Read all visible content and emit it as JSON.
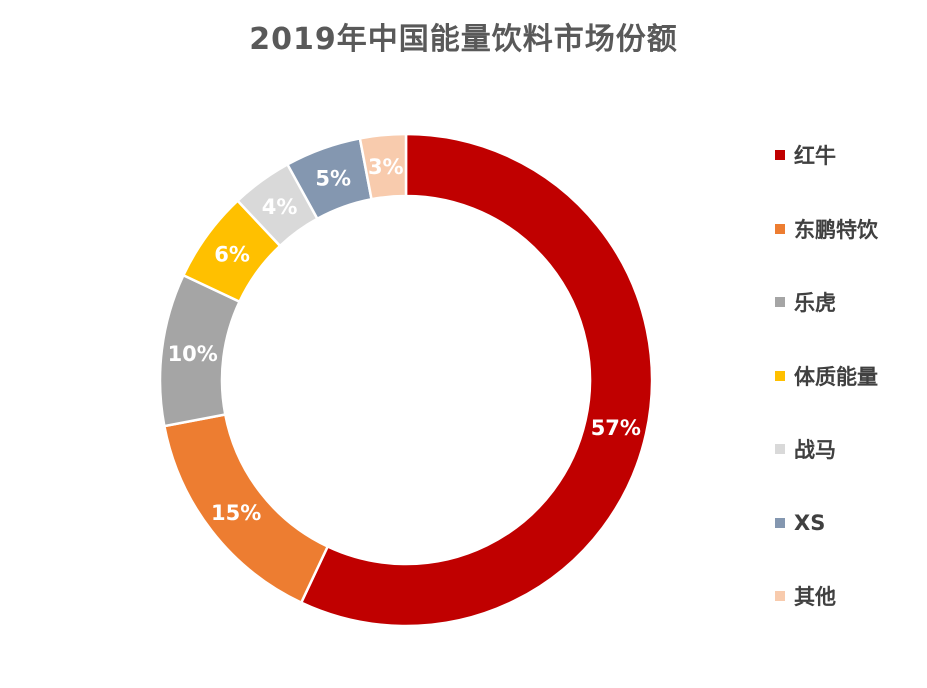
{
  "chart_data": {
    "type": "pie",
    "variant": "donut",
    "title": "2019年中国能量饮料市场份额",
    "categories": [
      "红牛",
      "东鹏特饮",
      "乐虎",
      "体质能量",
      "战马",
      "XS",
      "其他"
    ],
    "values": [
      57,
      15,
      10,
      6,
      4,
      5,
      3
    ],
    "labels": [
      "57%",
      "15%",
      "10%",
      "6%",
      "4%",
      "5%",
      "3%"
    ],
    "colors": [
      "#C00000",
      "#ED7D31",
      "#A5A5A5",
      "#FFC000",
      "#D9D9D9",
      "#8497B0",
      "#F8CBAD"
    ],
    "legend_position": "right",
    "unit": "%"
  }
}
